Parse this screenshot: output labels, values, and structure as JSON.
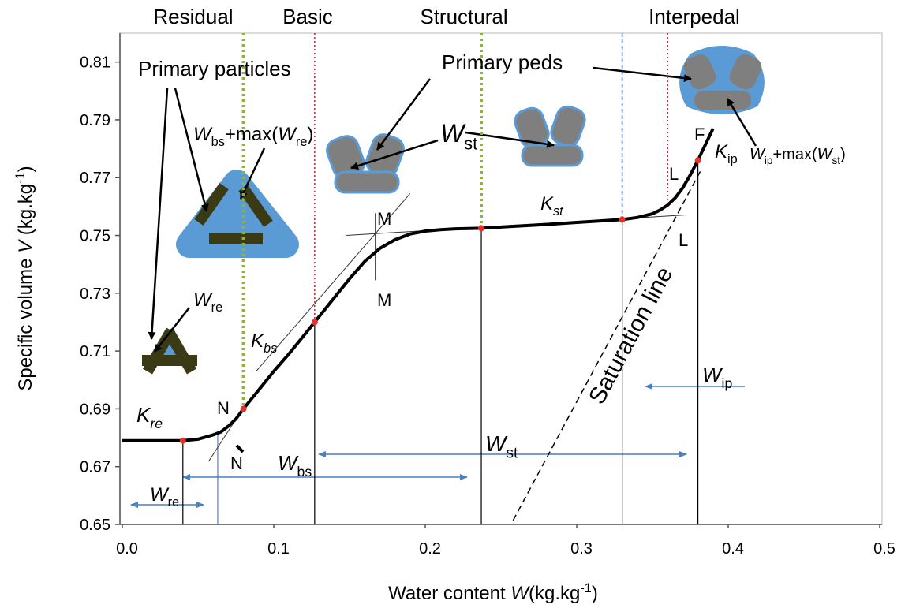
{
  "chart_data": {
    "type": "line",
    "zones": [
      {
        "name": "Residual",
        "color": "#000000"
      },
      {
        "name": "Basic",
        "color": "#8db33a"
      },
      {
        "name": "Structural",
        "color": "#c0262d"
      },
      {
        "name": "Interpedal",
        "color": "#2e5c8a"
      }
    ],
    "boundaries": [
      {
        "x": 0.08,
        "color": "#8db33a",
        "style": "dotted"
      },
      {
        "x": 0.127,
        "color": "#c0262d",
        "style": "dotted"
      },
      {
        "x": 0.237,
        "color": "#8db33a",
        "style": "dotted"
      },
      {
        "x": 0.33,
        "color": "#2e5c8a",
        "style": "dashed"
      },
      {
        "x": 0.36,
        "color": "#c0262d",
        "style": "dotted"
      }
    ],
    "x_label": [
      "Water  content ",
      {
        "italic": "W"
      },
      "(kg.kg",
      {
        "sup": "-1"
      },
      ")"
    ],
    "y_label": [
      "Specific volume ",
      {
        "italic": "V"
      },
      " (kg.kg",
      {
        "sup": "-1"
      },
      ")"
    ],
    "xlim": [
      0,
      0.5
    ],
    "ylim": [
      0.65,
      0.82
    ],
    "xticks": [
      {
        "value": 0,
        "label": "0.0"
      },
      0.1,
      0.2,
      0.3,
      0.4,
      0.5
    ],
    "yticks": [
      0.65,
      0.67,
      0.69,
      0.71,
      0.73,
      0.75,
      0.77,
      0.79,
      0.81
    ],
    "curve": {
      "color": "#000000",
      "x": [
        0,
        0.02,
        0.04,
        0.05,
        0.06,
        0.065,
        0.07,
        0.075,
        0.08,
        0.09,
        0.1,
        0.11,
        0.127,
        0.14,
        0.15,
        0.16,
        0.17,
        0.18,
        0.19,
        0.2,
        0.21,
        0.22,
        0.237,
        0.26,
        0.28,
        0.3,
        0.33,
        0.34,
        0.35,
        0.355,
        0.36,
        0.365,
        0.37,
        0.375,
        0.38,
        0.385,
        0.39
      ],
      "y": [
        0.679,
        0.679,
        0.679,
        0.6795,
        0.681,
        0.682,
        0.684,
        0.6865,
        0.69,
        0.6965,
        0.703,
        0.709,
        0.72,
        0.7285,
        0.735,
        0.741,
        0.7455,
        0.7485,
        0.7505,
        0.7515,
        0.752,
        0.7523,
        0.7525,
        0.7532,
        0.7538,
        0.7545,
        0.7555,
        0.7562,
        0.7575,
        0.7588,
        0.7605,
        0.763,
        0.7665,
        0.771,
        0.776,
        0.7815,
        0.787
      ]
    },
    "points": {
      "color": "#e8302a",
      "x": [
        0.04,
        0.08,
        0.127,
        0.237,
        0.33,
        0.38
      ],
      "y": [
        0.679,
        0.69,
        0.72,
        0.7525,
        0.7555,
        0.776
      ]
    },
    "drop_lines": [
      0.04,
      0.063,
      0.127,
      0.237,
      0.33,
      0.38
    ],
    "tangents": [
      {
        "x": [
          0.057,
          0.0755
        ],
        "y": [
          0.6718,
          0.6868
        ]
      },
      {
        "x": [
          0.0885,
          0.19
        ],
        "y": [
          0.7031,
          0.7645
        ]
      },
      {
        "x": [
          0.148,
          0.372
        ],
        "y": [
          0.75,
          0.7571
        ]
      },
      {
        "x": [
          0.167,
          0.167
        ],
        "y": [
          0.7577,
          0.7345
        ]
      }
    ],
    "saturation": {
      "x": [
        0.258,
        0.382
      ],
      "y": [
        0.6514,
        0.7726
      ],
      "label": [
        "Saturation line"
      ]
    },
    "annotations": {
      "primary_particles": [
        "Primary particles"
      ],
      "primary_peds": [
        "Primary peds"
      ],
      "w_bs_max": [
        {
          "italic": "W"
        },
        {
          "sub": "bs"
        },
        "+max(",
        {
          "italic": "W"
        },
        {
          "sub": "re"
        },
        ")"
      ],
      "w_st_top": [
        {
          "italic": "W"
        },
        {
          "sub": "st"
        }
      ],
      "w_re_top": [
        {
          "italic": "W"
        },
        {
          "sub": "re"
        }
      ],
      "k_bs": [
        {
          "italic": "K"
        },
        {
          "sub": "bs"
        }
      ],
      "k_re": [
        {
          "italic": "K"
        },
        {
          "sub": "re"
        }
      ],
      "k_st": [
        {
          "italic": "K"
        },
        {
          "sub": "st"
        }
      ],
      "k_ip": [
        {
          "italic": "K"
        },
        {
          "sub": "ip"
        }
      ],
      "w_ip_max": [
        {
          "italic": "W"
        },
        {
          "sub": "ip"
        },
        "+max(",
        {
          "italic": "W"
        },
        {
          "sub": "st"
        },
        ")"
      ],
      "m_top": [
        "M"
      ],
      "m_bottom": [
        "M"
      ],
      "n_top": [
        "N"
      ],
      "n_bottom": [
        "N"
      ],
      "l_top": [
        "L"
      ],
      "l_bottom": [
        "L"
      ],
      "f": [
        "F"
      ],
      "w_re_range": [
        {
          "italic": "W"
        },
        {
          "sub": "re"
        }
      ],
      "w_bs_range": [
        {
          "italic": "W"
        },
        {
          "sub": "bs"
        }
      ],
      "w_st_range": [
        {
          "italic": "W"
        },
        {
          "sub": "st"
        }
      ],
      "w_ip_range": [
        {
          "italic": "W"
        },
        {
          "sub": "ip"
        }
      ]
    }
  }
}
